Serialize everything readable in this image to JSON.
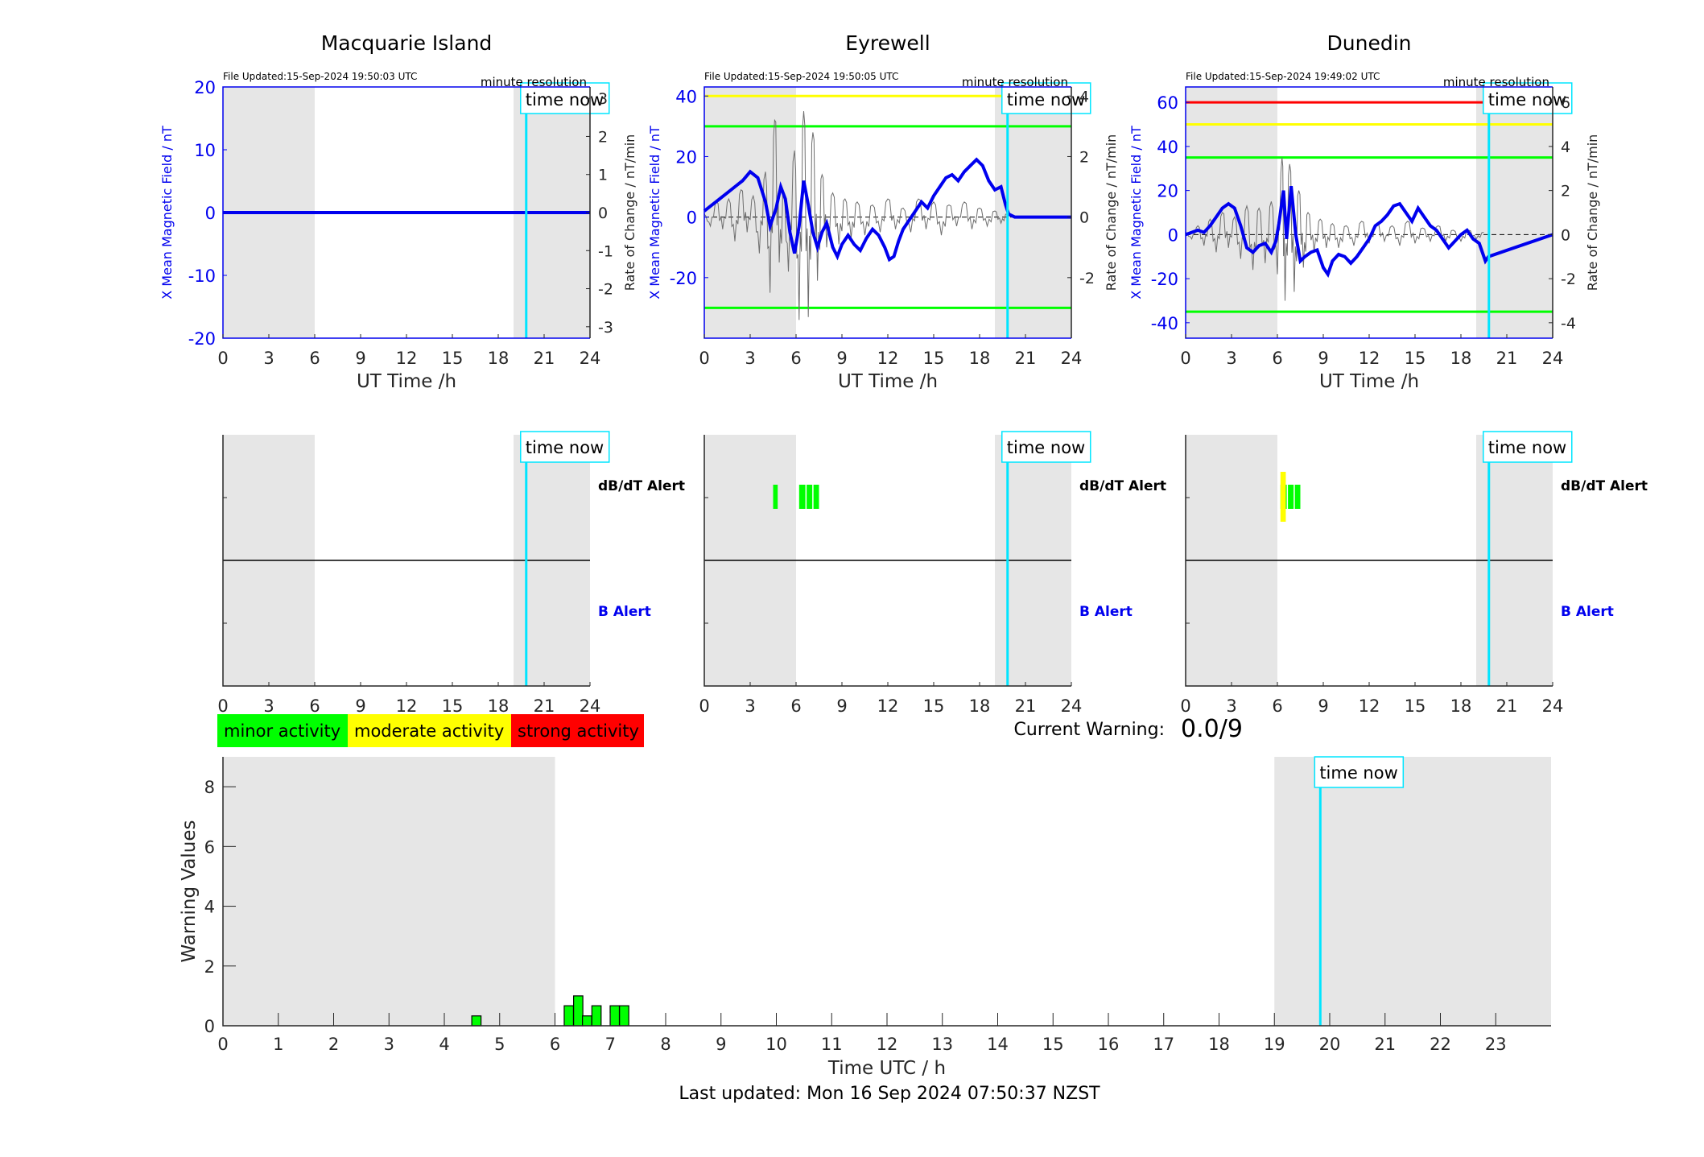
{
  "stations": [
    {
      "key": "macquarie",
      "name": "Macquarie Island",
      "file_updated": "File Updated:15-Sep-2024 19:50:03 UTC",
      "resolution": "minute resolution",
      "time_now_label": "time now",
      "xlabel": "UT Time /h",
      "ylabel_left": "X Mean Magnetic Field / nT",
      "ylabel_right": "Rate of Change / nT/min",
      "x_ticks": [
        "0",
        "3",
        "6",
        "9",
        "12",
        "15",
        "18",
        "21",
        "24"
      ],
      "y_left_ticks": [
        "-20",
        "-10",
        "0",
        "10",
        "20"
      ],
      "y_left_lim": [
        -20,
        20
      ],
      "y_right_ticks": [
        "-3",
        "-2",
        "-1",
        "0",
        "1",
        "2",
        "3"
      ],
      "y_right_lim": [
        -3.3,
        3.3
      ],
      "thresholds": [],
      "mean_field_series": [
        [
          0,
          0
        ],
        [
          24,
          0
        ]
      ],
      "rate_series": [],
      "dbdt_alerts": [],
      "b_alerts": [],
      "alert_labels": {
        "dbdt": "dB/dT Alert",
        "b": "B Alert"
      }
    },
    {
      "key": "eyrewell",
      "name": "Eyrewell",
      "file_updated": "File Updated:15-Sep-2024 19:50:05 UTC",
      "resolution": "minute resolution",
      "time_now_label": "time now",
      "xlabel": "UT Time /h",
      "ylabel_left": "X Mean Magnetic Field / nT",
      "ylabel_right": "Rate of Change / nT/min",
      "x_ticks": [
        "0",
        "3",
        "6",
        "9",
        "12",
        "15",
        "18",
        "21",
        "24"
      ],
      "y_left_ticks": [
        "-20",
        "0",
        "20",
        "40"
      ],
      "y_left_lim": [
        -40,
        43
      ],
      "y_right_ticks": [
        "-2",
        "0",
        "2",
        "4"
      ],
      "y_right_lim": [
        -4,
        4.3
      ],
      "thresholds": [
        {
          "value": 40,
          "color": "#ffff00"
        },
        {
          "value": 30,
          "color": "#00ff00"
        },
        {
          "value": -30,
          "color": "#00ff00"
        }
      ],
      "mean_field_series": [
        [
          0,
          2
        ],
        [
          0.5,
          4
        ],
        [
          1,
          6
        ],
        [
          1.5,
          8
        ],
        [
          2,
          10
        ],
        [
          2.5,
          12
        ],
        [
          3,
          15
        ],
        [
          3.5,
          13
        ],
        [
          4,
          5
        ],
        [
          4.3,
          -3
        ],
        [
          4.7,
          3
        ],
        [
          5,
          10
        ],
        [
          5.3,
          6
        ],
        [
          5.6,
          -5
        ],
        [
          5.9,
          -12
        ],
        [
          6.2,
          -3
        ],
        [
          6.5,
          12
        ],
        [
          6.8,
          4
        ],
        [
          7.1,
          -5
        ],
        [
          7.4,
          -10
        ],
        [
          7.7,
          -5
        ],
        [
          8,
          -2
        ],
        [
          8.4,
          -10
        ],
        [
          8.7,
          -13
        ],
        [
          9,
          -9
        ],
        [
          9.4,
          -6
        ],
        [
          9.8,
          -9
        ],
        [
          10.2,
          -11
        ],
        [
          10.6,
          -7
        ],
        [
          11,
          -4
        ],
        [
          11.4,
          -6
        ],
        [
          11.8,
          -10
        ],
        [
          12.1,
          -14
        ],
        [
          12.4,
          -13
        ],
        [
          12.7,
          -8
        ],
        [
          13,
          -4
        ],
        [
          13.4,
          -1
        ],
        [
          13.8,
          2
        ],
        [
          14.2,
          5
        ],
        [
          14.6,
          3
        ],
        [
          15,
          7
        ],
        [
          15.4,
          10
        ],
        [
          15.8,
          13
        ],
        [
          16.2,
          14
        ],
        [
          16.6,
          12
        ],
        [
          17,
          15
        ],
        [
          17.4,
          17
        ],
        [
          17.8,
          19
        ],
        [
          18.2,
          17
        ],
        [
          18.6,
          12
        ],
        [
          19,
          9
        ],
        [
          19.4,
          10
        ],
        [
          19.7,
          4
        ],
        [
          19.9,
          1
        ],
        [
          20.3,
          0
        ],
        [
          24,
          0
        ]
      ],
      "rate_series": [
        [
          0,
          0.1
        ],
        [
          0.4,
          -0.3
        ],
        [
          0.8,
          0.5
        ],
        [
          1.2,
          -0.4
        ],
        [
          1.6,
          0.6
        ],
        [
          2,
          -0.8
        ],
        [
          2.4,
          0.9
        ],
        [
          2.8,
          -0.5
        ],
        [
          3.2,
          0.7
        ],
        [
          3.6,
          -1.2
        ],
        [
          4,
          1.5
        ],
        [
          4.3,
          -2.5
        ],
        [
          4.6,
          3.2
        ],
        [
          4.9,
          -1.5
        ],
        [
          5.2,
          0.8
        ],
        [
          5.5,
          -1.8
        ],
        [
          5.9,
          2.2
        ],
        [
          6.2,
          -3.4
        ],
        [
          6.5,
          3.5
        ],
        [
          6.8,
          -3.3
        ],
        [
          7.1,
          2.8
        ],
        [
          7.4,
          -2.1
        ],
        [
          7.7,
          1.4
        ],
        [
          8,
          -1.0
        ],
        [
          8.4,
          0.8
        ],
        [
          8.8,
          -0.9
        ],
        [
          9.2,
          0.6
        ],
        [
          9.6,
          -0.7
        ],
        [
          10,
          0.5
        ],
        [
          10.5,
          -0.6
        ],
        [
          11,
          0.4
        ],
        [
          11.5,
          -0.5
        ],
        [
          12,
          0.6
        ],
        [
          12.5,
          -0.4
        ],
        [
          13,
          0.3
        ],
        [
          13.5,
          -0.5
        ],
        [
          14,
          0.6
        ],
        [
          14.5,
          -0.4
        ],
        [
          15,
          0.5
        ],
        [
          15.5,
          -0.6
        ],
        [
          16,
          0.4
        ],
        [
          16.5,
          -0.3
        ],
        [
          17,
          0.5
        ],
        [
          17.5,
          -0.4
        ],
        [
          18,
          0.3
        ],
        [
          18.5,
          -0.3
        ],
        [
          19,
          0.2
        ],
        [
          19.4,
          -0.2
        ],
        [
          19.8,
          0.1
        ]
      ],
      "dbdt_alerts": [
        {
          "start": 4.5,
          "end": 4.8,
          "color": "#00ff00"
        },
        {
          "start": 6.2,
          "end": 7.5,
          "color": "#00ff00"
        }
      ],
      "b_alerts": [],
      "alert_labels": {
        "dbdt": "dB/dT Alert",
        "b": "B Alert"
      }
    },
    {
      "key": "dunedin",
      "name": "Dunedin",
      "file_updated": "File Updated:15-Sep-2024 19:49:02 UTC",
      "resolution": "minute resolution",
      "time_now_label": "time now",
      "xlabel": "UT Time /h",
      "ylabel_left": "X Mean Magnetic Field / nT",
      "ylabel_right": "Rate of Change / nT/min",
      "x_ticks": [
        "0",
        "3",
        "6",
        "9",
        "12",
        "15",
        "18",
        "21",
        "24"
      ],
      "y_left_ticks": [
        "-40",
        "-20",
        "0",
        "20",
        "40",
        "60"
      ],
      "y_left_lim": [
        -47,
        67
      ],
      "y_right_ticks": [
        "-4",
        "-2",
        "0",
        "2",
        "4",
        "6"
      ],
      "y_right_lim": [
        -4.7,
        6.7
      ],
      "thresholds": [
        {
          "value": 60,
          "color": "#ff0000"
        },
        {
          "value": 50,
          "color": "#ffff00"
        },
        {
          "value": 35,
          "color": "#00ff00"
        },
        {
          "value": -35,
          "color": "#00ff00"
        }
      ],
      "mean_field_series": [
        [
          0,
          0
        ],
        [
          0.4,
          1
        ],
        [
          0.8,
          2
        ],
        [
          1.2,
          1
        ],
        [
          1.6,
          4
        ],
        [
          2,
          8
        ],
        [
          2.4,
          12
        ],
        [
          2.8,
          14
        ],
        [
          3.2,
          12
        ],
        [
          3.6,
          4
        ],
        [
          4,
          -6
        ],
        [
          4.4,
          -8
        ],
        [
          4.8,
          -5
        ],
        [
          5.2,
          -4
        ],
        [
          5.6,
          -8
        ],
        [
          5.9,
          -3
        ],
        [
          6.1,
          5
        ],
        [
          6.4,
          20
        ],
        [
          6.6,
          -2
        ],
        [
          6.9,
          22
        ],
        [
          7.2,
          0
        ],
        [
          7.5,
          -12
        ],
        [
          7.8,
          -10
        ],
        [
          8.2,
          -8
        ],
        [
          8.6,
          -7
        ],
        [
          9,
          -15
        ],
        [
          9.3,
          -18
        ],
        [
          9.6,
          -12
        ],
        [
          10,
          -9
        ],
        [
          10.4,
          -10
        ],
        [
          10.8,
          -13
        ],
        [
          11.2,
          -10
        ],
        [
          11.6,
          -6
        ],
        [
          12,
          -2
        ],
        [
          12.4,
          4
        ],
        [
          12.8,
          6
        ],
        [
          13.2,
          9
        ],
        [
          13.6,
          13
        ],
        [
          14,
          14
        ],
        [
          14.4,
          10
        ],
        [
          14.8,
          6
        ],
        [
          15.2,
          12
        ],
        [
          15.6,
          8
        ],
        [
          16,
          4
        ],
        [
          16.4,
          2
        ],
        [
          16.8,
          -2
        ],
        [
          17.2,
          -6
        ],
        [
          17.6,
          -3
        ],
        [
          18,
          0
        ],
        [
          18.4,
          2
        ],
        [
          18.8,
          -2
        ],
        [
          19.2,
          -4
        ],
        [
          19.6,
          -12
        ],
        [
          19.8,
          -10
        ],
        [
          24,
          0
        ]
      ],
      "rate_series": [
        [
          0,
          0.1
        ],
        [
          0.4,
          -0.2
        ],
        [
          0.8,
          0.4
        ],
        [
          1.2,
          -0.5
        ],
        [
          1.6,
          0.7
        ],
        [
          2,
          -0.8
        ],
        [
          2.4,
          1.0
        ],
        [
          2.8,
          -0.6
        ],
        [
          3.2,
          0.8
        ],
        [
          3.6,
          -1.1
        ],
        [
          4,
          1.3
        ],
        [
          4.4,
          -1.6
        ],
        [
          4.8,
          1.2
        ],
        [
          5.2,
          -1.3
        ],
        [
          5.6,
          1.5
        ],
        [
          6,
          -1.8
        ],
        [
          6.3,
          3.5
        ],
        [
          6.5,
          -3.0
        ],
        [
          6.8,
          3.2
        ],
        [
          7.1,
          -2.6
        ],
        [
          7.4,
          2.0
        ],
        [
          7.7,
          -1.5
        ],
        [
          8,
          1.0
        ],
        [
          8.4,
          -0.8
        ],
        [
          8.8,
          0.7
        ],
        [
          9.2,
          -0.6
        ],
        [
          9.6,
          0.5
        ],
        [
          10,
          -0.6
        ],
        [
          10.5,
          0.4
        ],
        [
          11,
          -0.5
        ],
        [
          11.5,
          0.6
        ],
        [
          12,
          -0.4
        ],
        [
          12.5,
          0.5
        ],
        [
          13,
          -0.3
        ],
        [
          13.5,
          0.4
        ],
        [
          14,
          -0.5
        ],
        [
          14.5,
          0.6
        ],
        [
          15,
          -0.4
        ],
        [
          15.5,
          0.3
        ],
        [
          16,
          -0.3
        ],
        [
          16.5,
          0.4
        ],
        [
          17,
          -0.3
        ],
        [
          17.5,
          0.2
        ],
        [
          18,
          -0.3
        ],
        [
          18.5,
          0.2
        ],
        [
          19,
          -0.2
        ],
        [
          19.5,
          0.1
        ]
      ],
      "dbdt_alerts": [
        {
          "start": 6.2,
          "end": 7.5,
          "color": "#00ff00"
        },
        {
          "start": 6.2,
          "end": 6.55,
          "color": "#ffff00"
        }
      ],
      "b_alerts": [],
      "alert_labels": {
        "dbdt": "dB/dT Alert",
        "b": "B Alert"
      }
    }
  ],
  "legend": [
    {
      "label": "minor activity",
      "color": "#00ff00"
    },
    {
      "label": "moderate activity",
      "color": "#ffff00"
    },
    {
      "label": "strong activity",
      "color": "#ff0000"
    }
  ],
  "current_warning": {
    "label": "Current Warning:",
    "value": "0.0/9"
  },
  "chart_data": {
    "type": "bar",
    "title": "",
    "xlabel": "Time UTC / h",
    "ylabel": "Warning Values",
    "xlim": [
      0,
      24
    ],
    "ylim": [
      0,
      9
    ],
    "x_ticks": [
      "0",
      "1",
      "2",
      "3",
      "4",
      "5",
      "6",
      "7",
      "8",
      "9",
      "10",
      "11",
      "12",
      "13",
      "14",
      "15",
      "16",
      "17",
      "18",
      "19",
      "20",
      "21",
      "22",
      "23"
    ],
    "y_ticks": [
      "0",
      "2",
      "4",
      "6",
      "8"
    ],
    "bar_width_h": 0.167,
    "bars": [
      {
        "x": 4.58,
        "value": 0.33
      },
      {
        "x": 6.25,
        "value": 0.67
      },
      {
        "x": 6.42,
        "value": 1.0
      },
      {
        "x": 6.58,
        "value": 0.33
      },
      {
        "x": 6.75,
        "value": 0.67
      },
      {
        "x": 7.08,
        "value": 0.67
      },
      {
        "x": 7.25,
        "value": 0.67
      }
    ],
    "bar_color": "#00ff00",
    "night_shading": [
      [
        0,
        6
      ],
      [
        19,
        24
      ]
    ],
    "time_now": 19.83,
    "time_now_label": "time now",
    "grid": false
  },
  "station_night_shading": [
    [
      0,
      6
    ],
    [
      19,
      24
    ]
  ],
  "station_time_now": 19.83,
  "footer": "Last updated: Mon 16 Sep 2024 07:50:37 NZST"
}
